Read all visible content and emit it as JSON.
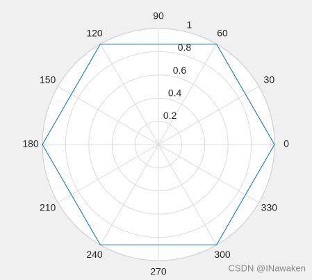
{
  "chart_data": {
    "type": "polar",
    "theta": [
      0,
      60,
      120,
      180,
      240,
      300,
      360
    ],
    "series": [
      {
        "color": "#0072bd",
        "values": [
          1,
          1,
          1,
          1,
          1,
          1,
          1
        ]
      }
    ],
    "rlim": [
      0,
      1
    ],
    "rticks": [
      0.2,
      0.4,
      0.6,
      0.8,
      1
    ],
    "thetaticks": [
      0,
      30,
      60,
      90,
      120,
      150,
      180,
      210,
      240,
      270,
      300,
      330
    ],
    "grid": true
  },
  "watermark": "CSDN @INawaken"
}
